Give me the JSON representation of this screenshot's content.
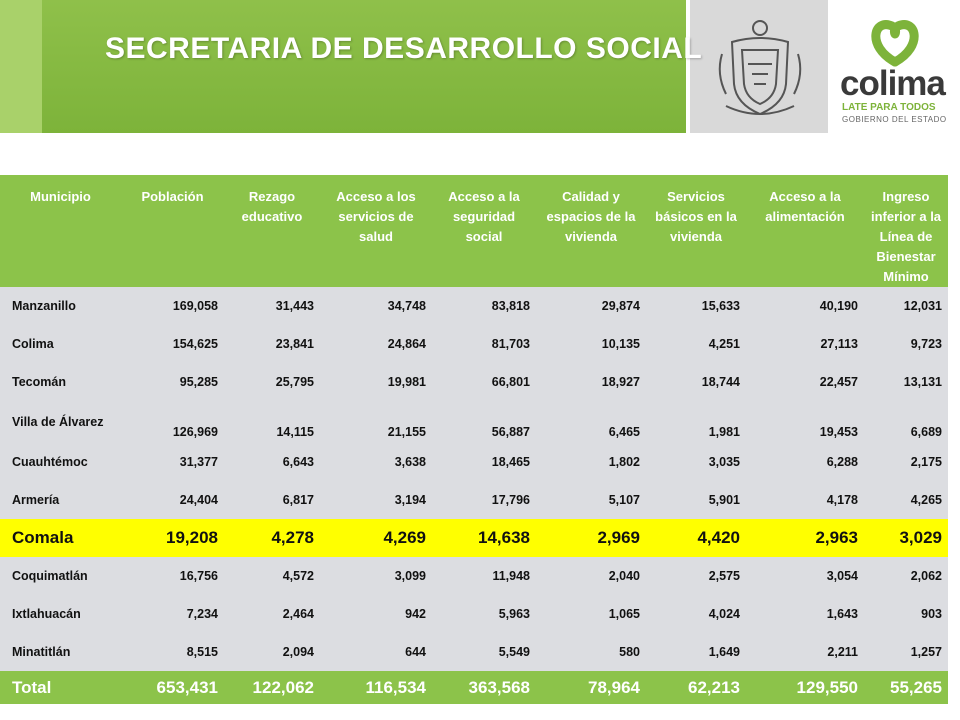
{
  "header": {
    "title": "SECRETARIA DE DESARROLLO SOCIAL",
    "logo_name": "colima",
    "logo_tag": "LATE PARA TODOS",
    "logo_sub": "GOBIERNO DEL ESTADO"
  },
  "colors": {
    "green": "#8cc34a",
    "highlight": "#ffff00",
    "row_bg": "#dcdde1"
  },
  "table": {
    "headers": [
      "Municipio",
      "Población",
      "Rezago educativo",
      "Acceso a los servicios de salud",
      "Acceso a la seguridad social",
      "Calidad y espacios de la vivienda",
      "Servicios básicos en la vivienda",
      "Acceso a la alimentación",
      "Ingreso inferior a la Línea de Bienestar Mínimo"
    ],
    "rows": [
      [
        "Manzanillo",
        "169,058",
        "31,443",
        "34,748",
        "83,818",
        "29,874",
        "15,633",
        "40,190",
        "12,031"
      ],
      [
        "Colima",
        "154,625",
        "23,841",
        "24,864",
        "81,703",
        "10,135",
        "4,251",
        "27,113",
        "9,723"
      ],
      [
        "Tecomán",
        "95,285",
        "25,795",
        "19,981",
        "66,801",
        "18,927",
        "18,744",
        "22,457",
        "13,131"
      ],
      [
        "Villa de Álvarez",
        "126,969",
        "14,115",
        "21,155",
        "56,887",
        "6,465",
        "1,981",
        "19,453",
        "6,689"
      ],
      [
        "Cuauhtémoc",
        "31,377",
        "6,643",
        "3,638",
        "18,465",
        "1,802",
        "3,035",
        "6,288",
        "2,175"
      ],
      [
        "Armería",
        "24,404",
        "6,817",
        "3,194",
        "17,796",
        "5,107",
        "5,901",
        "4,178",
        "4,265"
      ],
      [
        "Comala",
        "19,208",
        "4,278",
        "4,269",
        "14,638",
        "2,969",
        "4,420",
        "2,963",
        "3,029"
      ],
      [
        "Coquimatlán",
        "16,756",
        "4,572",
        "3,099",
        "11,948",
        "2,040",
        "2,575",
        "3,054",
        "2,062"
      ],
      [
        "Ixtlahuacán",
        "7,234",
        "2,464",
        "942",
        "5,963",
        "1,065",
        "4,024",
        "1,643",
        "903"
      ],
      [
        "Minatitlán",
        "8,515",
        "2,094",
        "644",
        "5,549",
        "580",
        "1,649",
        "2,211",
        "1,257"
      ]
    ],
    "total": [
      "Total",
      "653,431",
      "122,062",
      "116,534",
      "363,568",
      "78,964",
      "62,213",
      "129,550",
      "55,265"
    ]
  }
}
